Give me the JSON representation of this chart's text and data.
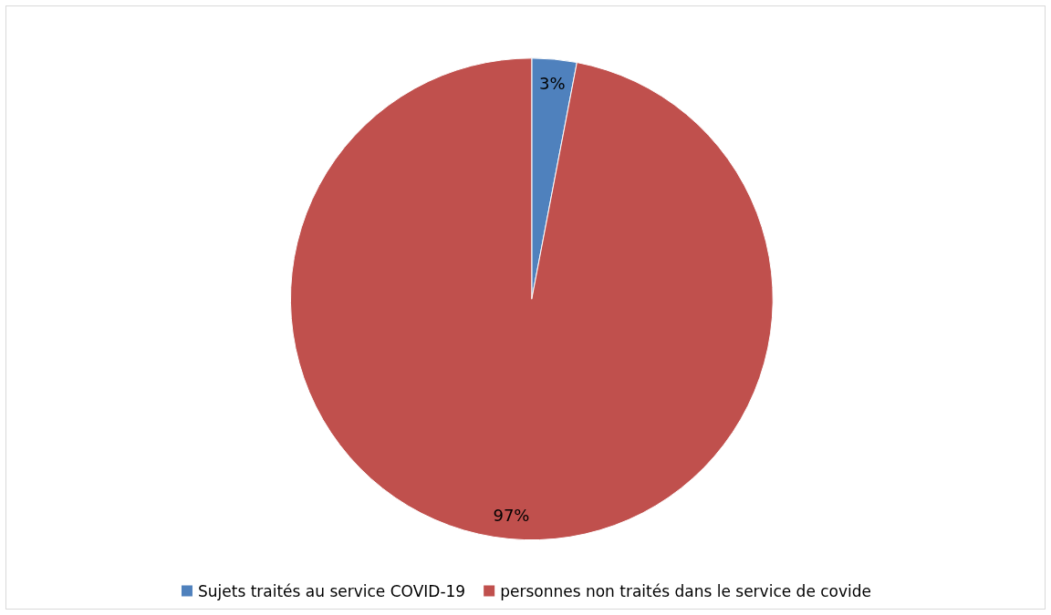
{
  "chart_data": {
    "type": "pie",
    "categories": [
      "Sujets traités au service COVID-19",
      "personnes non traités dans le service de covide"
    ],
    "values": [
      3,
      97
    ],
    "colors": [
      "#4f81bd",
      "#c0504d"
    ],
    "value_labels": [
      "3%",
      "97%"
    ],
    "legend": "bottom"
  }
}
